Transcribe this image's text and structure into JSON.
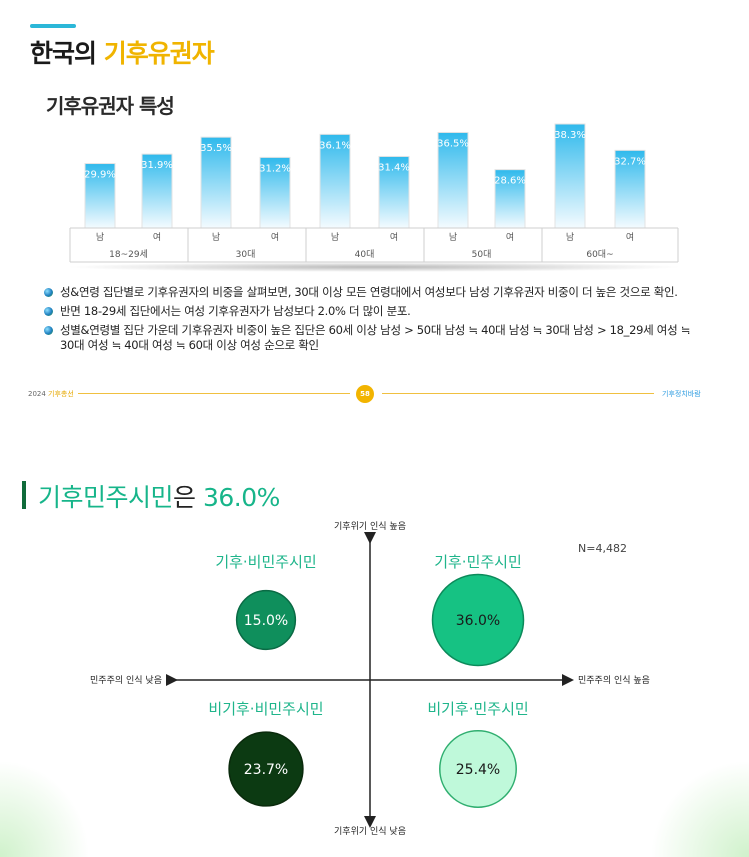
{
  "page": {
    "title_prefix": "한국의 ",
    "title_highlight": "기후유권자",
    "subtitle": "기후유권자 특성"
  },
  "bullets": [
    "성&연령 집단별로 기후유권자의 비중을 살펴보면, 30대 이상 모든 연령대에서 여성보다 남성 기후유권자 비중이 더 높은 것으로 확인.",
    "반면 18-29세 집단에서는 여성 기후유권자가 남성보다 2.0% 더 많이 분포.",
    "성별&연령별 집단 가운데 기후유권자 비중이 높은 집단은 60세 이상 남성 > 50대 남성 ≒ 40대 남성 ≒ 30대 남성 > 18_29세 여성 ≒ 30대 여성 ≒ 40대 여성 ≒ 60대 이상 여성 순으로 확인"
  ],
  "footer": {
    "left_year": "2024 ",
    "left_hl": "기후총선",
    "page": "58",
    "right": "기후정치바람"
  },
  "section2": {
    "title_green": "기후민주시민",
    "title_dark": "은 ",
    "title_value": "36.0%"
  },
  "chart_data": [
    {
      "type": "bar",
      "categories": [
        "남",
        "여",
        "남",
        "여",
        "남",
        "여",
        "남",
        "여",
        "남",
        "여"
      ],
      "groups": [
        "18~29세",
        "30대",
        "40대",
        "50대",
        "60대~"
      ],
      "values": [
        29.9,
        31.9,
        35.5,
        31.2,
        36.1,
        31.4,
        36.5,
        28.6,
        38.3,
        32.7
      ],
      "labels": [
        "29.9%",
        "31.9%",
        "35.5%",
        "31.2%",
        "36.1%",
        "31.4%",
        "36.5%",
        "28.6%",
        "38.3%",
        "32.7%"
      ],
      "colors": {
        "bar_top": "#2fb9ec",
        "bar_bottom": "#f4fbff"
      }
    },
    {
      "type": "scatter",
      "axes": {
        "top": "기후위기 인식 높음",
        "bottom": "기후위기 인식 낮음",
        "left": "민주주의 인식 낮음",
        "right": "민주주의 인식 높음"
      },
      "n_label": "N=4,482",
      "quadrants": [
        {
          "name": "기후·비민주시민",
          "value": 15.0,
          "label": "15.0%",
          "color": "#0f8f5c",
          "text_color": "#ffffff",
          "stroke": "#0a6a44"
        },
        {
          "name": "기후·민주시민",
          "value": 36.0,
          "label": "36.0%",
          "color": "#16c283",
          "text_color": "#1a1a1a",
          "stroke": "#0c8a5a"
        },
        {
          "name": "비기후·비민주시민",
          "value": 23.7,
          "label": "23.7%",
          "color": "#0c3a12",
          "text_color": "#ffffff",
          "stroke": "#0a2a0c"
        },
        {
          "name": "비기후·민주시민",
          "value": 25.4,
          "label": "25.4%",
          "color": "#bff9da",
          "text_color": "#1a1a1a",
          "stroke": "#2fae6f"
        }
      ],
      "label_color": "#1fb58b"
    }
  ]
}
